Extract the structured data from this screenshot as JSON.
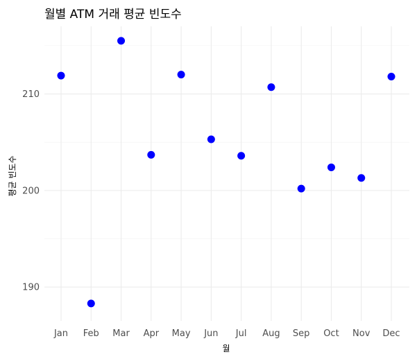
{
  "chart_data": {
    "type": "scatter",
    "title": "월별 ATM 거래 평균 빈도수",
    "xlabel": "월",
    "ylabel": "평균 빈도수",
    "categories": [
      "Jan",
      "Feb",
      "Mar",
      "Apr",
      "May",
      "Jun",
      "Jul",
      "Aug",
      "Sep",
      "Oct",
      "Nov",
      "Dec"
    ],
    "series": [
      {
        "values": [
          211.9,
          188.3,
          215.5,
          203.7,
          212.0,
          205.3,
          203.6,
          210.7,
          200.2,
          202.4,
          201.3,
          211.8
        ],
        "color": "#0000ff"
      }
    ],
    "yticks": [
      190,
      200,
      210
    ],
    "ylim": [
      186.5,
      217.0
    ],
    "grid": true,
    "legend": "none"
  }
}
